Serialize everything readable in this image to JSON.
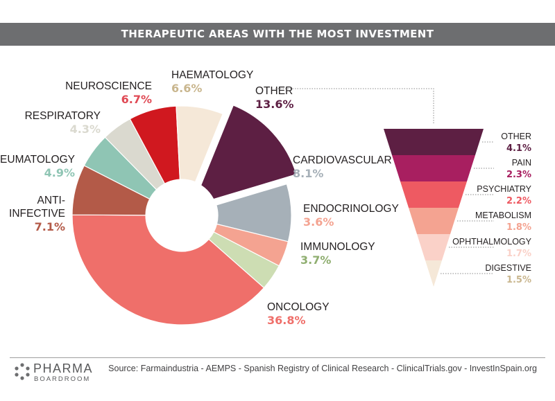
{
  "title": "THERAPEUTIC AREAS WITH THE MOST INVESTMENT",
  "chart_data": [
    {
      "type": "pie",
      "variant": "donut",
      "series": [
        {
          "label": "OTHER",
          "value_label": "13.6%",
          "value": 13.6,
          "color": "#5d1f43",
          "exploded": true
        },
        {
          "label": "CARDIOVASCULAR",
          "value_label": "8.1%",
          "value": 8.1,
          "color": "#a6b0b8"
        },
        {
          "label": "ENDOCRINOLOGY",
          "value_label": "3.6%",
          "value": 3.6,
          "color": "#f4a391"
        },
        {
          "label": "IMMUNOLOGY",
          "value_label": "3.7%",
          "value": 3.7,
          "color": "#cdddb3",
          "value_color": "#8fae70"
        },
        {
          "label": "ONCOLOGY",
          "value_label": "36.8%",
          "value": 36.8,
          "color": "#ef6f6a"
        },
        {
          "label": "ANTI-",
          "label2": "INFECTIVE",
          "value_label": "7.1%",
          "value": 7.1,
          "color": "#b35a48"
        },
        {
          "label": "REUMATOLOGY",
          "value_label": "4.9%",
          "value": 4.9,
          "color": "#8fc5b4"
        },
        {
          "label": "RESPIRATORY",
          "value_label": "4.3%",
          "value": 4.3,
          "color": "#dad9cf"
        },
        {
          "label": "NEUROSCIENCE",
          "value_label": "6.7%",
          "value": 6.7,
          "color": "#d0181f",
          "value_color": "#e04a55"
        },
        {
          "label": "HAEMATOLOGY",
          "value_label": "6.6%",
          "value": 6.6,
          "color": "#f5e8d8",
          "value_color": "#c9b68e"
        }
      ]
    },
    {
      "type": "funnel",
      "breakdown_of": "OTHER",
      "series": [
        {
          "label": "OTHER",
          "value_label": "4.1%",
          "value": 4.1,
          "color": "#5d1f43"
        },
        {
          "label": "PAIN",
          "value_label": "2.3%",
          "value": 2.3,
          "color": "#a81f60"
        },
        {
          "label": "PSYCHIATRY",
          "value_label": "2.2%",
          "value": 2.2,
          "color": "#ee5a62"
        },
        {
          "label": "METABOLISM",
          "value_label": "1.8%",
          "value": 1.8,
          "color": "#f4a391"
        },
        {
          "label": "OPHTHALMOLOGY",
          "value_label": "1.7%",
          "value": 1.7,
          "color": "#fad1c8"
        },
        {
          "label": "DIGESTIVE",
          "value_label": "1.5%",
          "value": 1.5,
          "color": "#f5e8d8",
          "value_color": "#c9b68e"
        }
      ]
    }
  ],
  "footer": {
    "logo_top": "PHARMA",
    "logo_bottom": "BOARDROOM",
    "source": "Source:  Farmaindustria - AEMPS - Spanish Registry of Clinical Research - ClinicalTrials.gov - InvestInSpain.org"
  }
}
